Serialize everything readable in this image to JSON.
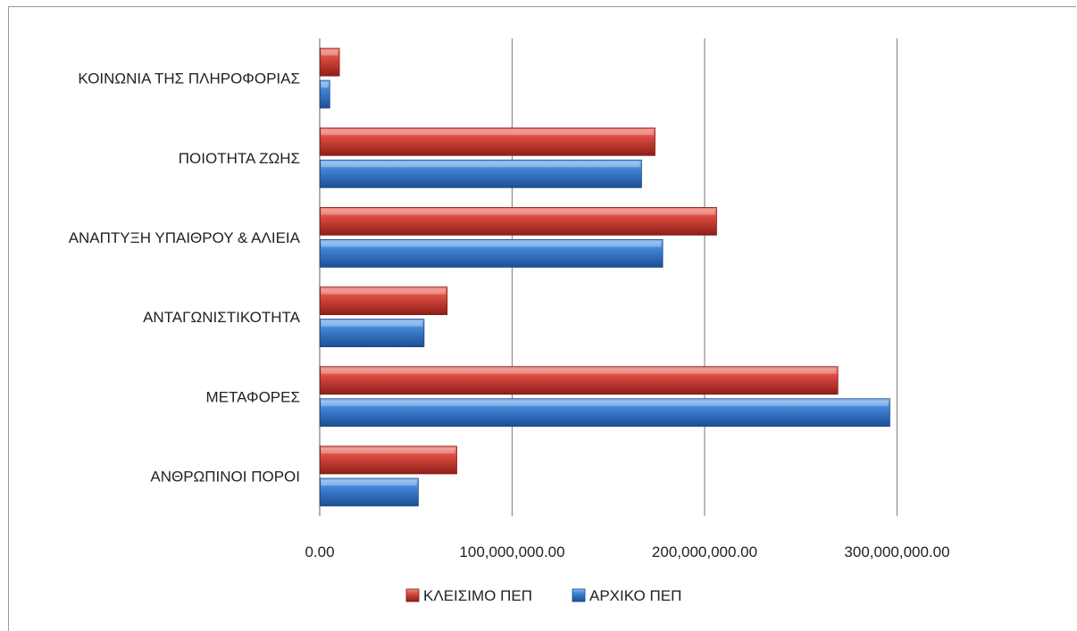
{
  "chart_data": {
    "type": "bar",
    "orientation": "horizontal",
    "categories": [
      "ΑΝΘΡΩΠΙΝΟΙ ΠΟΡΟΙ",
      "ΜΕΤΑΦΟΡΕΣ",
      "ΑΝΤΑΓΩΝΙΣΤΙΚΟΤΗΤΑ",
      "ΑΝΑΠΤΥΞΗ ΥΠΑΙΘΡΟΥ & ΑΛΙΕΙΑ",
      "ΠΟΙΟΤΗΤΑ ΖΩΗΣ",
      "ΚΟΙΝΩΝΙΑ ΤΗΣ ΠΛΗΡΟΦΟΡΙΑΣ"
    ],
    "series": [
      {
        "name": "ΚΛΕΙΣΙΜΟ ΠΕΠ",
        "color": "#c0392b",
        "values": [
          71000000,
          269000000,
          66000000,
          206000000,
          174000000,
          10000000
        ]
      },
      {
        "name": "ΑΡΧΙΚΟ ΠΕΠ",
        "color": "#2e6fbf",
        "values": [
          51000000,
          296000000,
          54000000,
          178000000,
          167000000,
          5000000
        ]
      }
    ],
    "xticks": [
      0,
      100000000,
      200000000,
      300000000
    ],
    "xtick_labels": [
      "0.00",
      "100,000,000.00",
      "200,000,000.00",
      "300,000,000.00"
    ],
    "xlim": [
      0,
      400000000
    ],
    "grid": true,
    "legend_position": "bottom",
    "title": "",
    "xlabel": "",
    "ylabel": ""
  }
}
